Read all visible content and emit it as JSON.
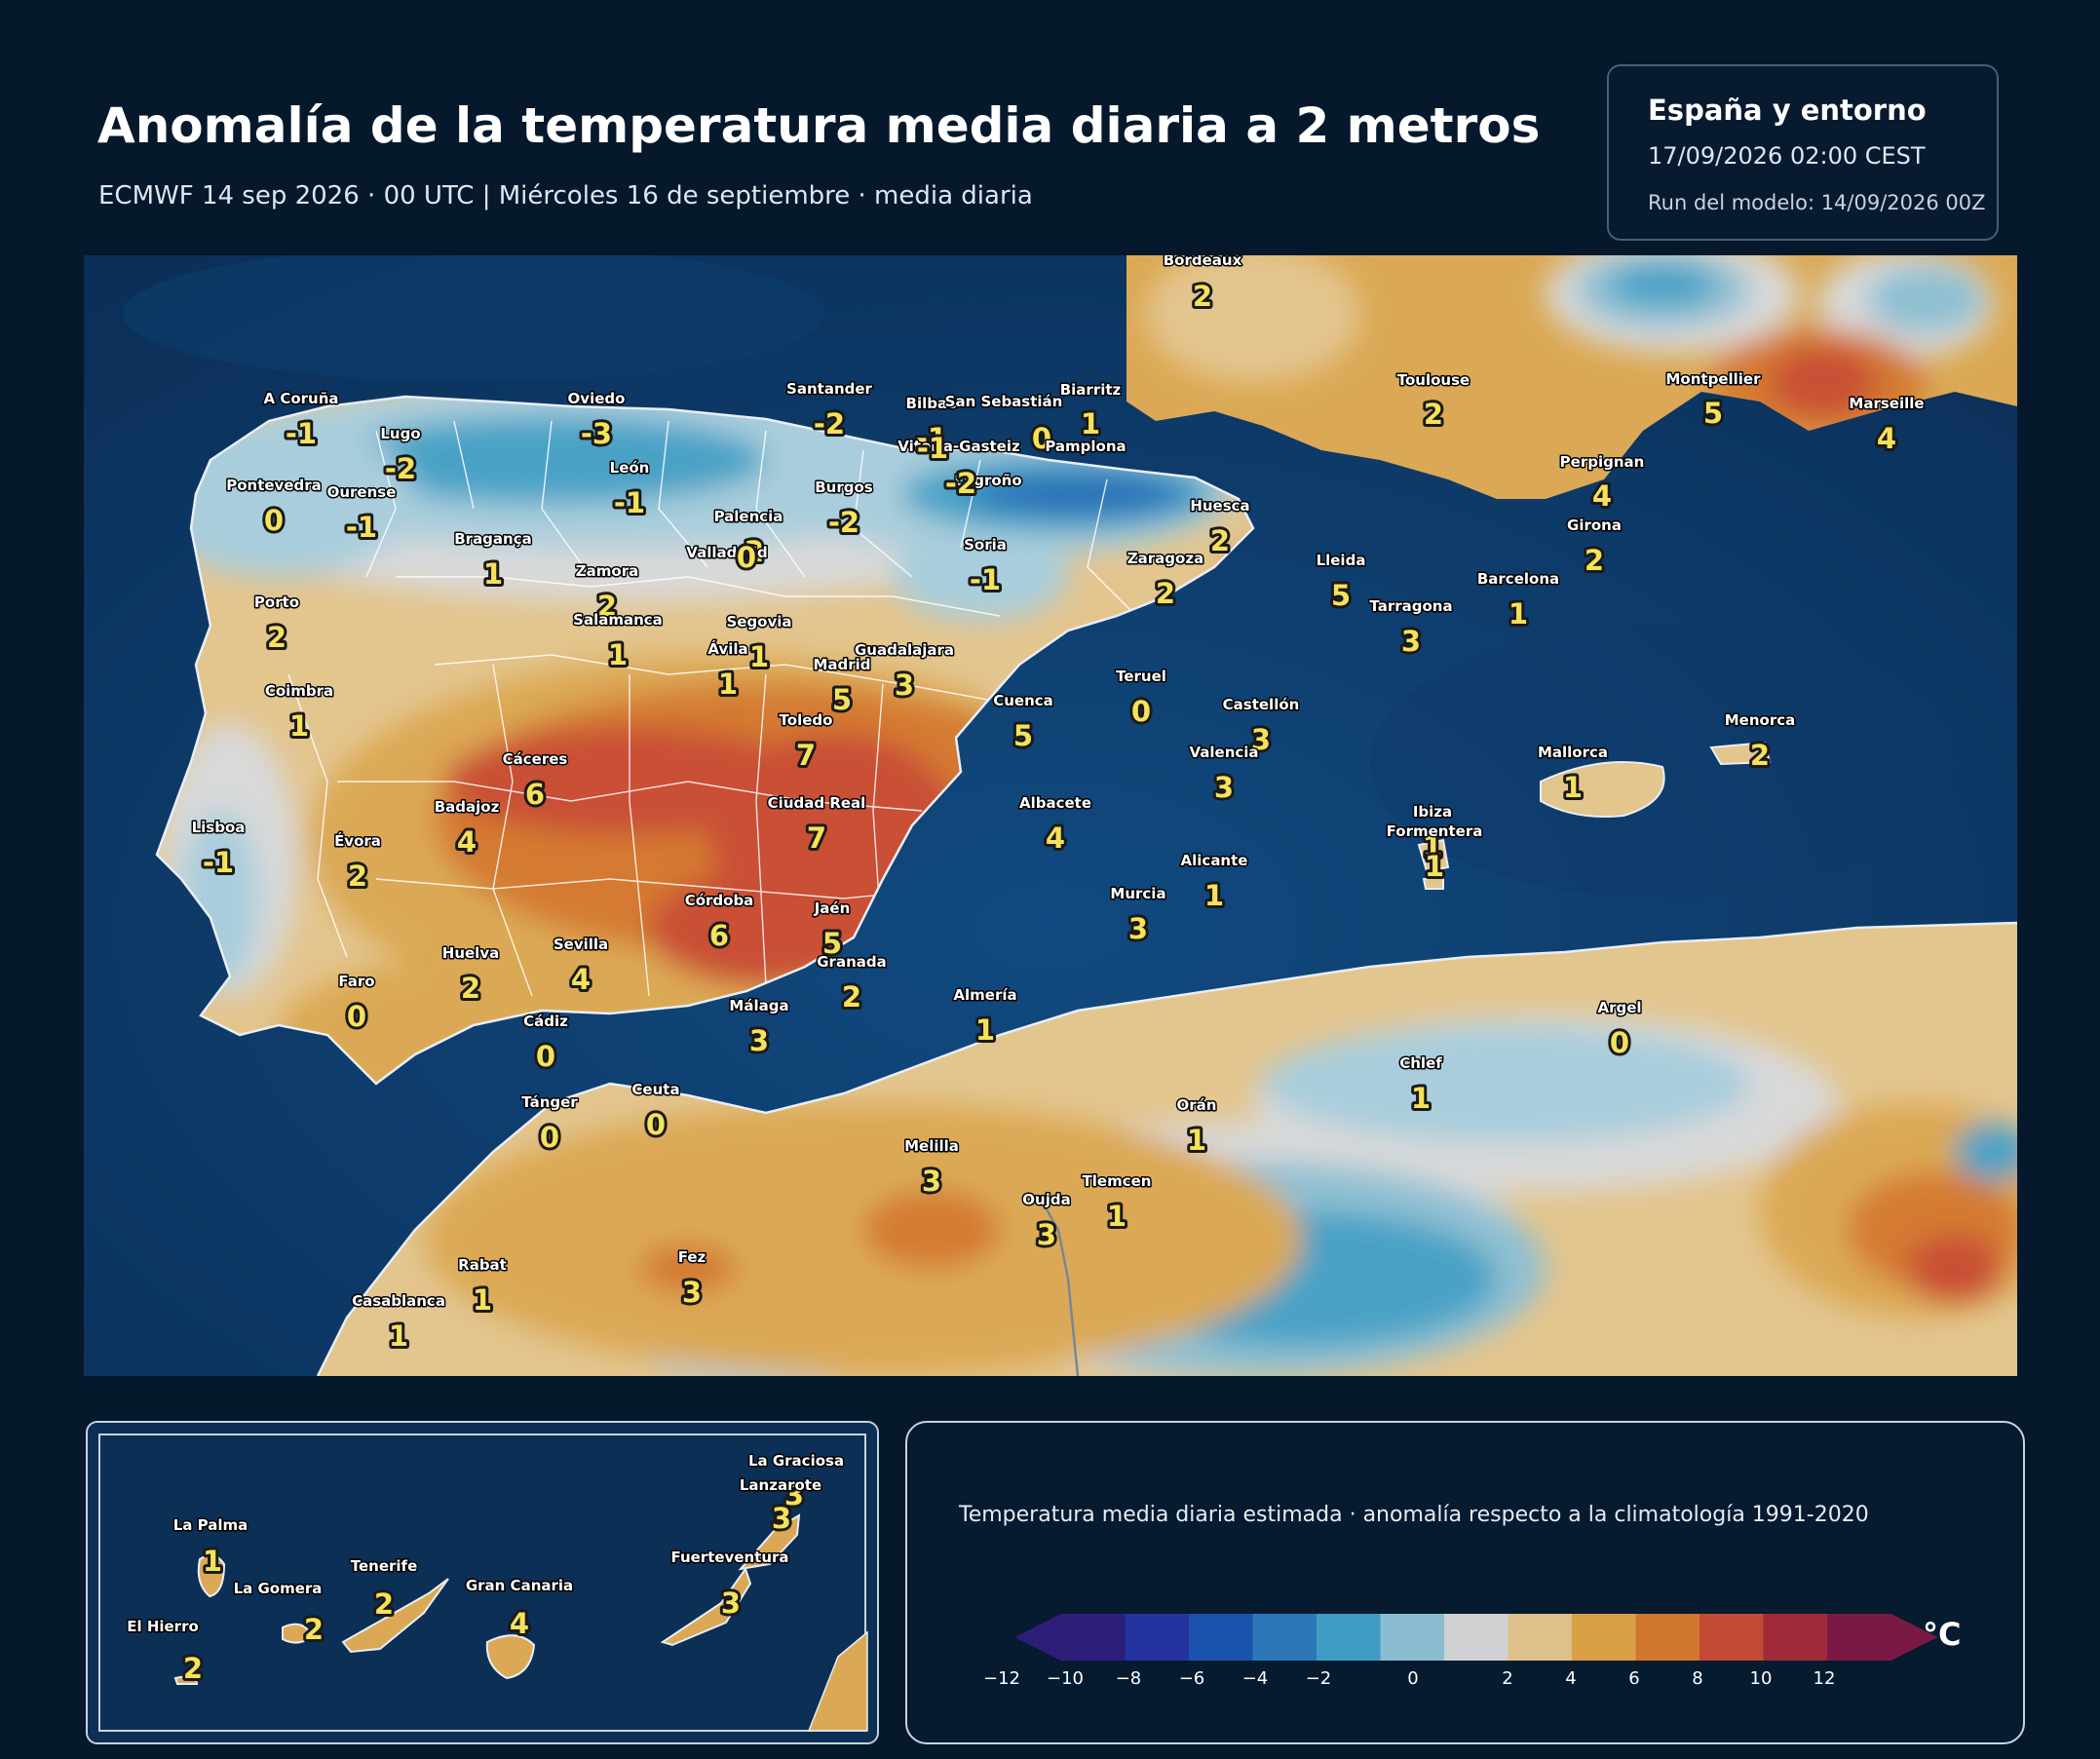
{
  "header": {
    "title": "Anomalía de la temperatura media diaria a 2 metros",
    "subtitle": "ECMWF 14 sep 2026 · 00 UTC  |  Miércoles 16 de septiembre · media diaria"
  },
  "info": {
    "region": "España y entorno",
    "valid": "17/09/2026  02:00 CEST",
    "run": "Run del modelo: 14/09/2026 00Z"
  },
  "legend": {
    "caption": "Temperatura media diaria estimada · anomalía respecto a la climatología 1991-2020",
    "unit": "°C",
    "ticks": [
      "−12",
      "−10",
      "−8",
      "−6",
      "−4",
      "−2",
      "0",
      "2",
      "4",
      "6",
      "8",
      "10",
      "12"
    ],
    "colors": [
      "#2d1e7a",
      "#2433a0",
      "#1a52ad",
      "#2c77b8",
      "#3f9cc4",
      "#8bbdd0",
      "#cfd1d3",
      "#ddc08a",
      "#d9a047",
      "#d07730",
      "#c24a35",
      "#a02a3a",
      "#7a1a44"
    ]
  },
  "map": {
    "stations": [
      {
        "name": "Bordeaux",
        "value": "2"
      },
      {
        "name": "A Coruña",
        "value": "-1"
      },
      {
        "name": "Oviedo",
        "value": "-3"
      },
      {
        "name": "Santander",
        "value": "-2"
      },
      {
        "name": "Bilbao",
        "value": "-1"
      },
      {
        "name": "San Sebastián",
        "value": "0"
      },
      {
        "name": "Biarritz",
        "value": "1"
      },
      {
        "name": "Vitoria-Gasteiz",
        "value": "-1"
      },
      {
        "name": "Pamplona",
        "value": ""
      },
      {
        "name": "Toulouse",
        "value": "2"
      },
      {
        "name": "Montpellier",
        "value": "5"
      },
      {
        "name": "Marseille",
        "value": "4"
      },
      {
        "name": "Lugo",
        "value": "-2"
      },
      {
        "name": "León",
        "value": "-1"
      },
      {
        "name": "Pontevedra",
        "value": "0"
      },
      {
        "name": "Ourense",
        "value": "-1"
      },
      {
        "name": "Burgos",
        "value": "-2"
      },
      {
        "name": "Logroño",
        "value": "-2"
      },
      {
        "name": "Perpignan",
        "value": "4"
      },
      {
        "name": "Palencia",
        "value": "-2"
      },
      {
        "name": "Huesca",
        "value": "2"
      },
      {
        "name": "Soria",
        "value": "-1"
      },
      {
        "name": "Girona",
        "value": "2"
      },
      {
        "name": "Bragança",
        "value": "1"
      },
      {
        "name": "Valladolid",
        "value": "0"
      },
      {
        "name": "Zaragoza",
        "value": "2"
      },
      {
        "name": "Lleida",
        "value": "5"
      },
      {
        "name": "Zamora",
        "value": "2"
      },
      {
        "name": "Barcelona",
        "value": "1"
      },
      {
        "name": "Porto",
        "value": "2"
      },
      {
        "name": "Salamanca",
        "value": "1"
      },
      {
        "name": "Segovia",
        "value": "1"
      },
      {
        "name": "Tarragona",
        "value": "3"
      },
      {
        "name": "Ávila",
        "value": "1"
      },
      {
        "name": "Guadalajara",
        "value": "3"
      },
      {
        "name": "Madrid",
        "value": "5"
      },
      {
        "name": "Teruel",
        "value": "0"
      },
      {
        "name": "Coimbra",
        "value": "1"
      },
      {
        "name": "Cuenca",
        "value": "5"
      },
      {
        "name": "Castellón",
        "value": "3"
      },
      {
        "name": "Toledo",
        "value": "7"
      },
      {
        "name": "Menorca",
        "value": "2"
      },
      {
        "name": "Cáceres",
        "value": "6"
      },
      {
        "name": "Valencia",
        "value": "3"
      },
      {
        "name": "Mallorca",
        "value": "1"
      },
      {
        "name": "Badajoz",
        "value": "4"
      },
      {
        "name": "Ciudad Real",
        "value": "7"
      },
      {
        "name": "Albacete",
        "value": "4"
      },
      {
        "name": "Ibiza",
        "value": "1"
      },
      {
        "name": "Formentera",
        "value": "1"
      },
      {
        "name": "Lisboa",
        "value": "-1"
      },
      {
        "name": "Évora",
        "value": "2"
      },
      {
        "name": "Alicante",
        "value": "1"
      },
      {
        "name": "Murcia",
        "value": "3"
      },
      {
        "name": "Córdoba",
        "value": "6"
      },
      {
        "name": "Jaén",
        "value": "5"
      },
      {
        "name": "Huelva",
        "value": "2"
      },
      {
        "name": "Sevilla",
        "value": "4"
      },
      {
        "name": "Granada",
        "value": "2"
      },
      {
        "name": "Faro",
        "value": "0"
      },
      {
        "name": "Almería",
        "value": "1"
      },
      {
        "name": "Málaga",
        "value": "3"
      },
      {
        "name": "Argel",
        "value": "0"
      },
      {
        "name": "Cádiz",
        "value": "0"
      },
      {
        "name": "Chlef",
        "value": "1"
      },
      {
        "name": "Tánger",
        "value": "0"
      },
      {
        "name": "Ceuta",
        "value": "0"
      },
      {
        "name": "Orán",
        "value": "1"
      },
      {
        "name": "Melilla",
        "value": "3"
      },
      {
        "name": "Tlemcen",
        "value": "1"
      },
      {
        "name": "Oujda",
        "value": "3"
      },
      {
        "name": "Rabat",
        "value": "1"
      },
      {
        "name": "Fez",
        "value": "3"
      },
      {
        "name": "Casablanca",
        "value": "1"
      }
    ]
  },
  "canarias": {
    "islands": [
      {
        "name": "La Graciosa",
        "value": "3"
      },
      {
        "name": "Lanzarote",
        "value": "3"
      },
      {
        "name": "La Palma",
        "value": "1"
      },
      {
        "name": "Fuerteventura",
        "value": "3"
      },
      {
        "name": "Tenerife",
        "value": "2"
      },
      {
        "name": "La Gomera",
        "value": "2"
      },
      {
        "name": "Gran Canaria",
        "value": "4"
      },
      {
        "name": "El Hierro",
        "value": "2"
      }
    ]
  }
}
